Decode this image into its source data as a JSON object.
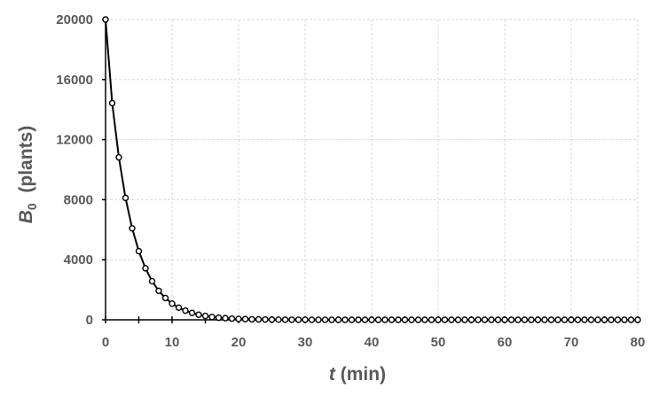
{
  "chart_data": {
    "type": "line",
    "title": "",
    "xlabel": {
      "var": "t",
      "rest": " (min)"
    },
    "ylabel": {
      "var": "B",
      "sub": "0",
      "rest": "  (plants)"
    },
    "xlim": [
      0,
      80
    ],
    "ylim": [
      0,
      20000
    ],
    "x_ticks": [
      0,
      10,
      20,
      30,
      40,
      50,
      60,
      70,
      80
    ],
    "y_ticks": [
      0,
      4000,
      8000,
      12000,
      16000,
      20000
    ],
    "grid": true,
    "legend": "none",
    "series": [
      {
        "color": "#000000",
        "marker": "open-circle",
        "x": [
          0,
          1,
          2,
          3,
          4,
          5,
          6,
          7,
          8,
          9,
          10,
          11,
          12,
          13,
          14,
          15,
          16,
          17,
          18,
          19,
          20,
          21,
          22,
          23,
          24,
          25,
          26,
          27,
          28,
          29,
          30,
          31,
          32,
          33,
          34,
          35,
          36,
          37,
          38,
          39,
          40,
          41,
          42,
          43,
          44,
          45,
          46,
          47,
          48,
          49,
          50,
          51,
          52,
          53,
          54,
          55,
          56,
          57,
          58,
          59,
          60,
          61,
          62,
          63,
          64,
          65,
          66,
          67,
          68,
          69,
          70,
          71,
          72,
          73,
          74,
          75,
          76,
          77,
          78,
          79,
          80
        ],
        "y": [
          20000,
          14430,
          10820,
          8120,
          6090,
          4570,
          3430,
          2570,
          1930,
          1450,
          1080,
          810,
          610,
          460,
          340,
          260,
          190,
          140,
          110,
          80,
          60,
          45,
          35,
          26,
          19,
          15,
          11,
          8,
          6,
          5,
          4,
          3,
          2,
          1.5,
          1,
          1,
          0,
          0,
          0,
          0,
          0,
          0,
          0,
          0,
          0,
          0,
          0,
          0,
          0,
          0,
          0,
          0,
          0,
          0,
          0,
          0,
          0,
          0,
          0,
          0,
          0,
          0,
          0,
          0,
          0,
          0,
          0,
          0,
          0,
          0,
          0,
          0,
          0,
          0,
          0,
          0,
          0,
          0,
          0,
          0,
          0
        ]
      }
    ]
  }
}
